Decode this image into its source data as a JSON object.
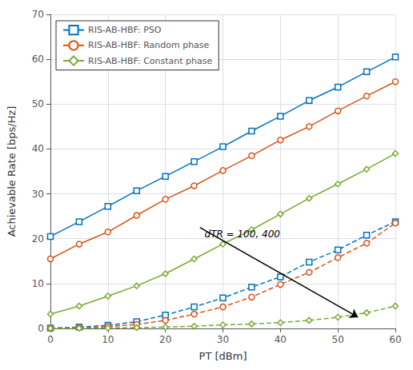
{
  "chart_data": {
    "type": "line",
    "xlabel": "PT [dBm]",
    "ylabel": "Achievable Rate [bps/Hz]",
    "x": [
      0,
      5,
      10,
      15,
      20,
      25,
      30,
      35,
      40,
      45,
      50,
      55,
      60
    ],
    "series": [
      {
        "name": "RIS-AB-HBF: PSO",
        "color": "#0072BD",
        "marker": "square",
        "line_style": "solid",
        "values": [
          20.5,
          23.8,
          27.2,
          30.7,
          33.9,
          37.2,
          40.5,
          44.0,
          47.3,
          50.8,
          53.8,
          57.2,
          60.5
        ]
      },
      {
        "name": "RIS-AB-HBF: Random phase",
        "color": "#D95319",
        "marker": "circle",
        "line_style": "solid",
        "values": [
          15.5,
          18.8,
          21.5,
          25.2,
          28.8,
          31.8,
          35.2,
          38.5,
          42.0,
          45.0,
          48.5,
          51.8,
          55.0
        ]
      },
      {
        "name": "RIS-AB-HBF: Constant phase",
        "color": "#77AC30",
        "marker": "diamond",
        "line_style": "solid",
        "values": [
          3.2,
          5.0,
          7.2,
          9.5,
          12.2,
          15.5,
          18.8,
          22.0,
          25.5,
          29.0,
          32.2,
          35.5,
          39.0
        ]
      },
      {
        "color": "#0072BD",
        "marker": "square",
        "line_style": "dashed",
        "values": [
          0.1,
          0.3,
          0.7,
          1.5,
          3.0,
          4.8,
          6.8,
          9.2,
          11.5,
          14.8,
          17.5,
          20.8,
          23.8
        ]
      },
      {
        "color": "#D95319",
        "marker": "circle",
        "line_style": "dashed",
        "values": [
          0.05,
          0.15,
          0.4,
          0.9,
          1.8,
          3.2,
          4.8,
          7.0,
          9.8,
          12.5,
          15.8,
          19.0,
          23.5
        ]
      },
      {
        "color": "#77AC30",
        "marker": "diamond",
        "line_style": "dashed",
        "values": [
          0.02,
          0.05,
          0.1,
          0.2,
          0.3,
          0.5,
          0.8,
          1.0,
          1.3,
          1.8,
          2.5,
          3.5,
          5.0
        ]
      }
    ],
    "xlim": [
      0,
      60
    ],
    "xticks": [
      0,
      10,
      20,
      30,
      40,
      50,
      60
    ],
    "ylim": [
      0,
      70
    ],
    "yticks": [
      0,
      10,
      20,
      30,
      40,
      50,
      60,
      70
    ],
    "grid": true,
    "legend": "upper left",
    "annotations": [
      {
        "text": "dTR = 100, 400",
        "x": 26.8,
        "y": 22.0,
        "arrow_from": [
          26,
          22.5
        ],
        "arrow_to": [
          53.5,
          2.5
        ]
      }
    ]
  }
}
